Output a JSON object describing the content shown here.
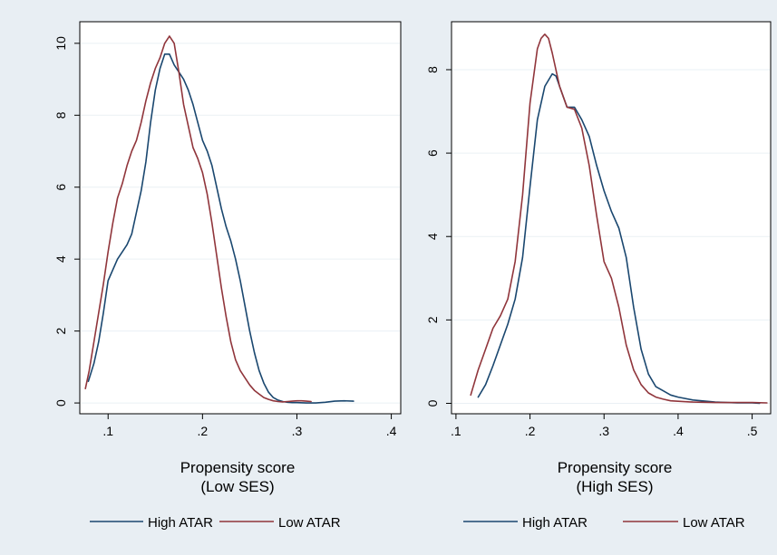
{
  "colors": {
    "background": "#e8eef3",
    "plot_background": "#ffffff",
    "gridline": "#eaf0f4",
    "high_atar": "#1a476f",
    "low_atar": "#90353b"
  },
  "chart_data": [
    {
      "type": "line",
      "title": "",
      "xlabel": "Propensity score",
      "xlabel_sub": "(Low SES)",
      "ylabel": "",
      "xlim": [
        0.07,
        0.41
      ],
      "ylim": [
        -0.3,
        10.6
      ],
      "xticks": [
        0.1,
        0.2,
        0.3,
        0.4
      ],
      "xtick_labels": [
        ".1",
        ".2",
        ".3",
        ".4"
      ],
      "yticks": [
        0,
        2,
        4,
        6,
        8,
        10
      ],
      "ytick_labels": [
        "0",
        "2",
        "4",
        "6",
        "8",
        "10"
      ],
      "grid": true,
      "legend_position": "bottom",
      "series": [
        {
          "name": "High ATAR",
          "color": "#1a476f",
          "x": [
            0.079,
            0.085,
            0.09,
            0.095,
            0.1,
            0.105,
            0.11,
            0.115,
            0.12,
            0.125,
            0.13,
            0.135,
            0.14,
            0.145,
            0.15,
            0.155,
            0.16,
            0.165,
            0.17,
            0.175,
            0.18,
            0.185,
            0.19,
            0.195,
            0.2,
            0.205,
            0.21,
            0.215,
            0.22,
            0.225,
            0.23,
            0.235,
            0.24,
            0.245,
            0.25,
            0.255,
            0.26,
            0.265,
            0.27,
            0.275,
            0.28,
            0.285,
            0.29,
            0.295,
            0.3,
            0.31,
            0.32,
            0.33,
            0.34,
            0.35,
            0.36
          ],
          "y": [
            0.6,
            1.1,
            1.7,
            2.5,
            3.4,
            3.7,
            4.0,
            4.2,
            4.4,
            4.7,
            5.3,
            5.9,
            6.7,
            7.8,
            8.7,
            9.3,
            9.7,
            9.7,
            9.4,
            9.2,
            9.0,
            8.7,
            8.3,
            7.8,
            7.3,
            7.0,
            6.6,
            6.0,
            5.4,
            4.9,
            4.5,
            4.0,
            3.4,
            2.7,
            2.0,
            1.4,
            0.9,
            0.55,
            0.3,
            0.15,
            0.08,
            0.04,
            0.02,
            0.01,
            0.01,
            0.0,
            0.0,
            0.02,
            0.05,
            0.06,
            0.05
          ]
        },
        {
          "name": "Low ATAR",
          "color": "#90353b",
          "x": [
            0.076,
            0.08,
            0.085,
            0.09,
            0.095,
            0.1,
            0.105,
            0.11,
            0.115,
            0.12,
            0.125,
            0.13,
            0.135,
            0.14,
            0.145,
            0.15,
            0.155,
            0.16,
            0.165,
            0.17,
            0.175,
            0.18,
            0.185,
            0.19,
            0.195,
            0.2,
            0.205,
            0.21,
            0.215,
            0.22,
            0.225,
            0.23,
            0.235,
            0.24,
            0.245,
            0.25,
            0.255,
            0.26,
            0.265,
            0.27,
            0.275,
            0.28,
            0.285,
            0.29,
            0.295,
            0.3,
            0.305,
            0.31,
            0.315
          ],
          "y": [
            0.4,
            0.9,
            1.7,
            2.5,
            3.3,
            4.2,
            5.0,
            5.7,
            6.1,
            6.6,
            7.0,
            7.3,
            7.8,
            8.4,
            8.9,
            9.3,
            9.6,
            10.0,
            10.2,
            10.0,
            9.2,
            8.3,
            7.7,
            7.1,
            6.8,
            6.4,
            5.8,
            5.0,
            4.1,
            3.2,
            2.4,
            1.7,
            1.2,
            0.9,
            0.7,
            0.5,
            0.35,
            0.25,
            0.15,
            0.1,
            0.06,
            0.04,
            0.03,
            0.04,
            0.05,
            0.06,
            0.06,
            0.05,
            0.04
          ]
        }
      ]
    },
    {
      "type": "line",
      "title": "",
      "xlabel": "Propensity score",
      "xlabel_sub": "(High SES)",
      "ylabel": "",
      "xlim": [
        0.094,
        0.525
      ],
      "ylim": [
        -0.25,
        9.15
      ],
      "xticks": [
        0.1,
        0.2,
        0.3,
        0.4,
        0.5
      ],
      "xtick_labels": [
        ".1",
        ".2",
        ".3",
        ".4",
        ".5"
      ],
      "yticks": [
        0,
        2,
        4,
        6,
        8
      ],
      "ytick_labels": [
        "0",
        "2",
        "4",
        "6",
        "8"
      ],
      "grid": true,
      "legend_position": "bottom",
      "series": [
        {
          "name": "High ATAR",
          "color": "#1a476f",
          "x": [
            0.13,
            0.14,
            0.15,
            0.16,
            0.17,
            0.18,
            0.19,
            0.2,
            0.21,
            0.22,
            0.23,
            0.235,
            0.24,
            0.25,
            0.26,
            0.27,
            0.28,
            0.29,
            0.3,
            0.31,
            0.32,
            0.33,
            0.34,
            0.35,
            0.36,
            0.37,
            0.38,
            0.39,
            0.4,
            0.42,
            0.45,
            0.48,
            0.5,
            0.51
          ],
          "y": [
            0.15,
            0.45,
            0.9,
            1.4,
            1.9,
            2.5,
            3.5,
            5.2,
            6.8,
            7.6,
            7.9,
            7.85,
            7.6,
            7.1,
            7.1,
            6.8,
            6.4,
            5.7,
            5.1,
            4.6,
            4.2,
            3.5,
            2.3,
            1.3,
            0.7,
            0.4,
            0.3,
            0.2,
            0.15,
            0.08,
            0.03,
            0.01,
            0.01,
            0.0
          ]
        },
        {
          "name": "Low ATAR",
          "color": "#90353b",
          "x": [
            0.12,
            0.13,
            0.14,
            0.15,
            0.16,
            0.17,
            0.18,
            0.19,
            0.2,
            0.21,
            0.215,
            0.22,
            0.225,
            0.23,
            0.24,
            0.25,
            0.26,
            0.27,
            0.28,
            0.29,
            0.3,
            0.31,
            0.32,
            0.33,
            0.34,
            0.35,
            0.36,
            0.37,
            0.38,
            0.39,
            0.4,
            0.42,
            0.45,
            0.48,
            0.5,
            0.52
          ],
          "y": [
            0.2,
            0.8,
            1.3,
            1.8,
            2.1,
            2.5,
            3.4,
            5.0,
            7.2,
            8.5,
            8.75,
            8.85,
            8.75,
            8.4,
            7.6,
            7.1,
            7.05,
            6.6,
            5.7,
            4.5,
            3.4,
            3.0,
            2.3,
            1.4,
            0.8,
            0.45,
            0.25,
            0.15,
            0.1,
            0.06,
            0.05,
            0.03,
            0.02,
            0.02,
            0.02,
            0.01
          ]
        }
      ]
    }
  ]
}
